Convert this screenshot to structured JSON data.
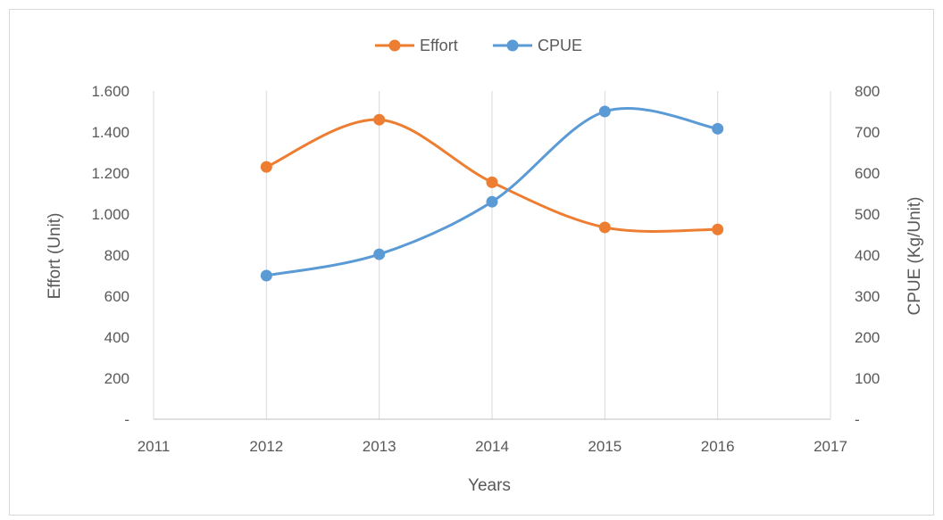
{
  "chart_data": {
    "type": "line",
    "smooth": true,
    "title": "",
    "xlabel": "Years",
    "ylabel_left": "Effort (Unit)",
    "ylabel_right": "CPUE (Kg/Unit)",
    "xlim": [
      2011,
      2017
    ],
    "x_ticks": [
      "2011",
      "2012",
      "2013",
      "2014",
      "2015",
      "2016",
      "2017"
    ],
    "ylim_left": [
      0,
      1600
    ],
    "ylim_right": [
      0,
      800
    ],
    "y_ticks_left": [
      "-",
      "200",
      "400",
      "600",
      "800",
      "1.000",
      "1.200",
      "1.400",
      "1.600"
    ],
    "y_ticks_right": [
      "-",
      "100",
      "200",
      "300",
      "400",
      "500",
      "600",
      "700",
      "800"
    ],
    "grid": "vertical",
    "legend_position": "top",
    "series": [
      {
        "name": "Effort",
        "axis": "left",
        "color": "#ED7D31",
        "x": [
          2012,
          2013,
          2014,
          2015,
          2016
        ],
        "values": [
          1230,
          1460,
          1155,
          935,
          925
        ]
      },
      {
        "name": "CPUE",
        "axis": "right",
        "color": "#5B9BD5",
        "x": [
          2012,
          2013,
          2014,
          2015,
          2016
        ],
        "values": [
          350,
          402,
          530,
          750,
          708
        ]
      }
    ]
  }
}
